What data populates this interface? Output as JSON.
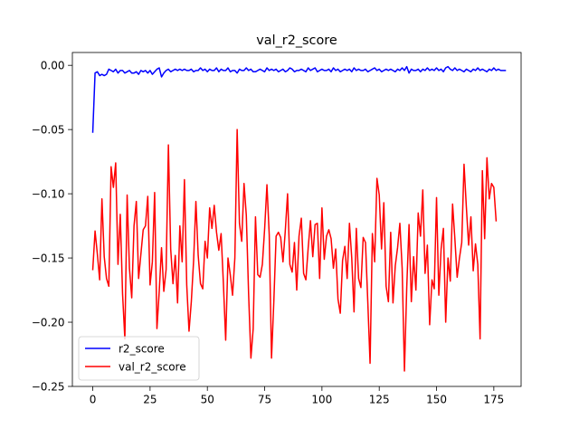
{
  "chart_data": {
    "type": "line",
    "title": "val_r2_score",
    "xlabel": "",
    "ylabel": "",
    "xlim": [
      -8.9,
      186.9
    ],
    "ylim": [
      -0.25,
      0.01
    ],
    "xticks": [
      0,
      25,
      50,
      75,
      100,
      125,
      150,
      175
    ],
    "xtick_labels": [
      "0",
      "25",
      "50",
      "75",
      "100",
      "125",
      "150",
      "175"
    ],
    "yticks": [
      0.0,
      -0.05,
      -0.1,
      -0.15,
      -0.2,
      -0.25
    ],
    "ytick_labels": [
      "0.00",
      "−0.05",
      "−0.10",
      "−0.15",
      "−0.20",
      "−0.25"
    ],
    "grid": false,
    "legend_position": "lower-left",
    "series": [
      {
        "name": "r2_score",
        "color": "#0000ff",
        "values": [
          -0.052,
          -0.006,
          -0.005,
          -0.008,
          -0.007,
          -0.008,
          -0.007,
          -0.003,
          -0.004,
          -0.005,
          -0.003,
          -0.006,
          -0.004,
          -0.004,
          -0.006,
          -0.005,
          -0.004,
          -0.006,
          -0.006,
          -0.005,
          -0.007,
          -0.004,
          -0.005,
          -0.004,
          -0.006,
          -0.004,
          -0.007,
          -0.005,
          -0.003,
          -0.002,
          -0.009,
          -0.006,
          -0.004,
          -0.003,
          -0.005,
          -0.004,
          -0.003,
          -0.004,
          -0.003,
          -0.004,
          -0.003,
          -0.004,
          -0.004,
          -0.003,
          -0.005,
          -0.004,
          -0.004,
          -0.002,
          -0.004,
          -0.003,
          -0.005,
          -0.003,
          -0.004,
          -0.004,
          -0.002,
          -0.005,
          -0.003,
          -0.004,
          -0.004,
          -0.002,
          -0.005,
          -0.004,
          -0.004,
          -0.006,
          -0.003,
          -0.004,
          -0.004,
          -0.002,
          -0.004,
          -0.003,
          -0.005,
          -0.005,
          -0.004,
          -0.003,
          -0.004,
          -0.005,
          -0.002,
          -0.004,
          -0.003,
          -0.004,
          -0.003,
          -0.005,
          -0.004,
          -0.003,
          -0.005,
          -0.004,
          -0.002,
          -0.003,
          -0.005,
          -0.004,
          -0.004,
          -0.003,
          -0.004,
          -0.005,
          -0.002,
          -0.004,
          -0.003,
          -0.002,
          -0.005,
          -0.004,
          -0.003,
          -0.004,
          -0.004,
          -0.003,
          -0.005,
          -0.002,
          -0.004,
          -0.003,
          -0.005,
          -0.004,
          -0.003,
          -0.004,
          -0.003,
          -0.005,
          -0.002,
          -0.004,
          -0.003,
          -0.004,
          -0.004,
          -0.003,
          -0.005,
          -0.004,
          -0.003,
          -0.002,
          -0.004,
          -0.003,
          -0.005,
          -0.004,
          -0.003,
          -0.004,
          -0.003,
          -0.004,
          -0.005,
          -0.003,
          -0.004,
          -0.002,
          -0.004,
          -0.001,
          -0.006,
          -0.003,
          -0.004,
          -0.004,
          -0.003,
          -0.005,
          -0.003,
          -0.004,
          -0.002,
          -0.004,
          -0.003,
          -0.004,
          -0.002,
          -0.004,
          -0.003,
          -0.005,
          -0.002,
          -0.001,
          -0.003,
          -0.004,
          -0.002,
          -0.004,
          -0.003,
          -0.004,
          -0.005,
          -0.003,
          -0.004,
          -0.005,
          -0.003,
          -0.004,
          -0.002,
          -0.004,
          -0.003,
          -0.004,
          -0.005,
          -0.003,
          -0.004,
          -0.002,
          -0.004,
          -0.003,
          -0.004,
          -0.004,
          -0.004
        ]
      },
      {
        "name": "val_r2_score",
        "color": "#ff0000",
        "values": [
          -0.159,
          -0.129,
          -0.147,
          -0.167,
          -0.104,
          -0.149,
          -0.166,
          -0.172,
          -0.079,
          -0.095,
          -0.076,
          -0.155,
          -0.116,
          -0.178,
          -0.213,
          -0.101,
          -0.158,
          -0.181,
          -0.125,
          -0.106,
          -0.166,
          -0.147,
          -0.128,
          -0.125,
          -0.102,
          -0.171,
          -0.153,
          -0.099,
          -0.205,
          -0.176,
          -0.142,
          -0.176,
          -0.159,
          -0.062,
          -0.143,
          -0.17,
          -0.148,
          -0.185,
          -0.125,
          -0.153,
          -0.089,
          -0.171,
          -0.207,
          -0.184,
          -0.152,
          -0.106,
          -0.148,
          -0.17,
          -0.174,
          -0.137,
          -0.15,
          -0.111,
          -0.127,
          -0.109,
          -0.13,
          -0.144,
          -0.131,
          -0.17,
          -0.214,
          -0.15,
          -0.163,
          -0.179,
          -0.15,
          -0.05,
          -0.123,
          -0.137,
          -0.092,
          -0.117,
          -0.178,
          -0.228,
          -0.205,
          -0.118,
          -0.163,
          -0.165,
          -0.155,
          -0.127,
          -0.093,
          -0.132,
          -0.228,
          -0.184,
          -0.133,
          -0.13,
          -0.134,
          -0.153,
          -0.129,
          -0.1,
          -0.155,
          -0.161,
          -0.138,
          -0.175,
          -0.133,
          -0.119,
          -0.162,
          -0.167,
          -0.142,
          -0.121,
          -0.149,
          -0.124,
          -0.123,
          -0.166,
          -0.111,
          -0.151,
          -0.133,
          -0.128,
          -0.135,
          -0.158,
          -0.143,
          -0.182,
          -0.193,
          -0.152,
          -0.141,
          -0.166,
          -0.123,
          -0.15,
          -0.192,
          -0.127,
          -0.166,
          -0.173,
          -0.134,
          -0.138,
          -0.184,
          -0.232,
          -0.131,
          -0.153,
          -0.088,
          -0.101,
          -0.143,
          -0.107,
          -0.172,
          -0.184,
          -0.13,
          -0.185,
          -0.156,
          -0.142,
          -0.123,
          -0.158,
          -0.238,
          -0.173,
          -0.124,
          -0.184,
          -0.149,
          -0.175,
          -0.115,
          -0.133,
          -0.097,
          -0.162,
          -0.14,
          -0.202,
          -0.167,
          -0.174,
          -0.103,
          -0.179,
          -0.143,
          -0.127,
          -0.2,
          -0.15,
          -0.168,
          -0.108,
          -0.135,
          -0.165,
          -0.15,
          -0.138,
          -0.077,
          -0.11,
          -0.14,
          -0.118,
          -0.16,
          -0.139,
          -0.155,
          -0.213,
          -0.082,
          -0.135,
          -0.072,
          -0.104,
          -0.092,
          -0.095,
          -0.121
        ]
      }
    ]
  }
}
